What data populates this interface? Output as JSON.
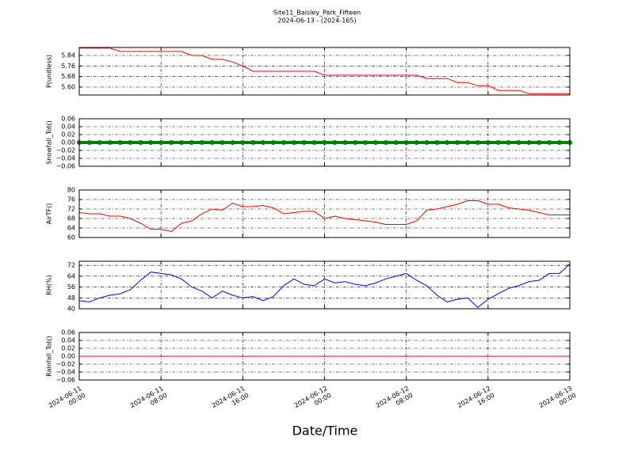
{
  "chart_data": [
    {
      "type": "line",
      "title": "Site11_Baisley_Park_Fifteen",
      "subtitle": "2024-06-13 - (2024-165)",
      "ylabel": "P(unitless)",
      "x": [
        "2024-06-11 00:00",
        "2024-06-11 01:00",
        "2024-06-11 02:00",
        "2024-06-11 03:00",
        "2024-06-11 04:00",
        "2024-06-11 05:00",
        "2024-06-11 06:00",
        "2024-06-11 07:00",
        "2024-06-11 08:00",
        "2024-06-11 09:00",
        "2024-06-11 10:00",
        "2024-06-11 11:00",
        "2024-06-11 12:00",
        "2024-06-11 13:00",
        "2024-06-11 14:00",
        "2024-06-11 15:00",
        "2024-06-11 16:00",
        "2024-06-11 17:00",
        "2024-06-11 18:00",
        "2024-06-11 19:00",
        "2024-06-11 20:00",
        "2024-06-11 21:00",
        "2024-06-11 22:00",
        "2024-06-11 23:00",
        "2024-06-12 00:00",
        "2024-06-12 01:00",
        "2024-06-12 02:00",
        "2024-06-12 03:00",
        "2024-06-12 04:00",
        "2024-06-12 05:00",
        "2024-06-12 06:00",
        "2024-06-12 07:00",
        "2024-06-12 08:00",
        "2024-06-12 09:00",
        "2024-06-12 10:00",
        "2024-06-12 11:00",
        "2024-06-12 12:00",
        "2024-06-12 13:00",
        "2024-06-12 14:00",
        "2024-06-12 15:00",
        "2024-06-12 16:00",
        "2024-06-12 17:00",
        "2024-06-12 18:00",
        "2024-06-12 19:00",
        "2024-06-12 20:00",
        "2024-06-12 21:00",
        "2024-06-12 22:00",
        "2024-06-12 23:00",
        "2024-06-13 00:00"
      ],
      "series": [
        {
          "color": "#ff0000",
          "values": [
            5.895,
            5.895,
            5.895,
            5.895,
            5.87,
            5.87,
            5.87,
            5.87,
            5.87,
            5.87,
            5.87,
            5.84,
            5.84,
            5.81,
            5.81,
            5.79,
            5.76,
            5.72,
            5.72,
            5.72,
            5.72,
            5.72,
            5.72,
            5.72,
            5.69,
            5.69,
            5.69,
            5.69,
            5.69,
            5.69,
            5.69,
            5.69,
            5.69,
            5.69,
            5.665,
            5.665,
            5.665,
            5.635,
            5.635,
            5.61,
            5.61,
            5.575,
            5.575,
            5.575,
            5.55,
            5.55,
            5.55,
            5.55,
            5.55
          ]
        }
      ],
      "xlim": [
        "2024-06-11 00:00",
        "2024-06-13 00:00"
      ],
      "xticks": [
        "2024-06-11 00:00",
        "2024-06-11 08:00",
        "2024-06-11 16:00",
        "2024-06-12 00:00",
        "2024-06-12 08:00",
        "2024-06-12 16:00",
        "2024-06-13 00:00"
      ],
      "ylim": [
        5.54,
        5.9
      ],
      "yticks": [
        {
          "value": 5.6,
          "label": "5.60"
        },
        5.68,
        5.76,
        5.84
      ],
      "grid": true
    },
    {
      "type": "line",
      "ylabel": "Snowfall_Tot()",
      "marker": true,
      "x": [
        "2024-06-11 00:00",
        "2024-06-11 01:00",
        "2024-06-11 02:00",
        "2024-06-11 03:00",
        "2024-06-11 04:00",
        "2024-06-11 05:00",
        "2024-06-11 06:00",
        "2024-06-11 07:00",
        "2024-06-11 08:00",
        "2024-06-11 09:00",
        "2024-06-11 10:00",
        "2024-06-11 11:00",
        "2024-06-11 12:00",
        "2024-06-11 13:00",
        "2024-06-11 14:00",
        "2024-06-11 15:00",
        "2024-06-11 16:00",
        "2024-06-11 17:00",
        "2024-06-11 18:00",
        "2024-06-11 19:00",
        "2024-06-11 20:00",
        "2024-06-11 21:00",
        "2024-06-11 22:00",
        "2024-06-11 23:00",
        "2024-06-12 00:00",
        "2024-06-12 01:00",
        "2024-06-12 02:00",
        "2024-06-12 03:00",
        "2024-06-12 04:00",
        "2024-06-12 05:00",
        "2024-06-12 06:00",
        "2024-06-12 07:00",
        "2024-06-12 08:00",
        "2024-06-12 09:00",
        "2024-06-12 10:00",
        "2024-06-12 11:00",
        "2024-06-12 12:00",
        "2024-06-12 13:00",
        "2024-06-12 14:00",
        "2024-06-12 15:00",
        "2024-06-12 16:00",
        "2024-06-12 17:00",
        "2024-06-12 18:00",
        "2024-06-12 19:00",
        "2024-06-12 20:00",
        "2024-06-12 21:00",
        "2024-06-12 22:00",
        "2024-06-12 23:00",
        "2024-06-13 00:00"
      ],
      "series": [
        {
          "color": "#008000",
          "values": [
            0,
            0,
            0,
            0,
            0,
            0,
            0,
            0,
            0,
            0,
            0,
            0,
            0,
            0,
            0,
            0,
            0,
            0,
            0,
            0,
            0,
            0,
            0,
            0,
            0,
            0,
            0,
            0,
            0,
            0,
            0,
            0,
            0,
            0,
            0,
            0,
            0,
            0,
            0,
            0,
            0,
            0,
            0,
            0,
            0,
            0,
            0,
            0,
            0
          ]
        }
      ],
      "xlim": [
        "2024-06-11 00:00",
        "2024-06-13 00:00"
      ],
      "xticks": [
        "2024-06-11 00:00",
        "2024-06-11 08:00",
        "2024-06-11 16:00",
        "2024-06-12 00:00",
        "2024-06-12 08:00",
        "2024-06-12 16:00",
        "2024-06-13 00:00"
      ],
      "ylim": [
        -0.06,
        0.06
      ],
      "yticks": [
        {
          "value": -0.06,
          "label": "−0.06"
        },
        {
          "value": -0.04,
          "label": "−0.04"
        },
        {
          "value": -0.02,
          "label": "−0.02"
        },
        {
          "value": 0,
          "label": "0.00"
        },
        0.02,
        0.04,
        0.06
      ],
      "grid": true
    },
    {
      "type": "line",
      "ylabel": "AirTF()",
      "x": [
        "2024-06-11 00:00",
        "2024-06-11 01:00",
        "2024-06-11 02:00",
        "2024-06-11 03:00",
        "2024-06-11 04:00",
        "2024-06-11 05:00",
        "2024-06-11 06:00",
        "2024-06-11 07:00",
        "2024-06-11 08:00",
        "2024-06-11 09:00",
        "2024-06-11 10:00",
        "2024-06-11 11:00",
        "2024-06-11 12:00",
        "2024-06-11 13:00",
        "2024-06-11 14:00",
        "2024-06-11 15:00",
        "2024-06-11 16:00",
        "2024-06-11 17:00",
        "2024-06-11 18:00",
        "2024-06-11 19:00",
        "2024-06-11 20:00",
        "2024-06-11 21:00",
        "2024-06-11 22:00",
        "2024-06-11 23:00",
        "2024-06-12 00:00",
        "2024-06-12 01:00",
        "2024-06-12 02:00",
        "2024-06-12 03:00",
        "2024-06-12 04:00",
        "2024-06-12 05:00",
        "2024-06-12 06:00",
        "2024-06-12 07:00",
        "2024-06-12 08:00",
        "2024-06-12 09:00",
        "2024-06-12 10:00",
        "2024-06-12 11:00",
        "2024-06-12 12:00",
        "2024-06-12 13:00",
        "2024-06-12 14:00",
        "2024-06-12 15:00",
        "2024-06-12 16:00",
        "2024-06-12 17:00",
        "2024-06-12 18:00",
        "2024-06-12 19:00",
        "2024-06-12 20:00",
        "2024-06-12 21:00",
        "2024-06-12 22:00",
        "2024-06-12 23:00",
        "2024-06-13 00:00"
      ],
      "series": [
        {
          "color": "#ff0000",
          "values": [
            70.5,
            70,
            70,
            69,
            69,
            68,
            66,
            63.5,
            63.5,
            62.5,
            66,
            67,
            70,
            72,
            71.5,
            74.5,
            73,
            73,
            73.5,
            72.5,
            70,
            70.5,
            71,
            71,
            68,
            69,
            68,
            67.5,
            67,
            66.5,
            65.5,
            65.5,
            65.5,
            67,
            71.5,
            72,
            73,
            74,
            75.5,
            75.5,
            74,
            74,
            72.5,
            72,
            71.5,
            70.5,
            69.5,
            69.5,
            69.5
          ]
        }
      ],
      "xlim": [
        "2024-06-11 00:00",
        "2024-06-13 00:00"
      ],
      "xticks": [
        "2024-06-11 00:00",
        "2024-06-11 08:00",
        "2024-06-11 16:00",
        "2024-06-12 00:00",
        "2024-06-12 08:00",
        "2024-06-12 16:00",
        "2024-06-13 00:00"
      ],
      "ylim": [
        60,
        80
      ],
      "yticks": [
        60,
        64,
        68,
        72,
        76,
        80
      ],
      "grid": true
    },
    {
      "type": "line",
      "ylabel": "RH(%)",
      "x": [
        "2024-06-11 00:00",
        "2024-06-11 01:00",
        "2024-06-11 02:00",
        "2024-06-11 03:00",
        "2024-06-11 04:00",
        "2024-06-11 05:00",
        "2024-06-11 06:00",
        "2024-06-11 07:00",
        "2024-06-11 08:00",
        "2024-06-11 09:00",
        "2024-06-11 10:00",
        "2024-06-11 11:00",
        "2024-06-11 12:00",
        "2024-06-11 13:00",
        "2024-06-11 14:00",
        "2024-06-11 15:00",
        "2024-06-11 16:00",
        "2024-06-11 17:00",
        "2024-06-11 18:00",
        "2024-06-11 19:00",
        "2024-06-11 20:00",
        "2024-06-11 21:00",
        "2024-06-11 22:00",
        "2024-06-11 23:00",
        "2024-06-12 00:00",
        "2024-06-12 01:00",
        "2024-06-12 02:00",
        "2024-06-12 03:00",
        "2024-06-12 04:00",
        "2024-06-12 05:00",
        "2024-06-12 06:00",
        "2024-06-12 07:00",
        "2024-06-12 08:00",
        "2024-06-12 09:00",
        "2024-06-12 10:00",
        "2024-06-12 11:00",
        "2024-06-12 12:00",
        "2024-06-12 13:00",
        "2024-06-12 14:00",
        "2024-06-12 15:00",
        "2024-06-12 16:00",
        "2024-06-12 17:00",
        "2024-06-12 18:00",
        "2024-06-12 19:00",
        "2024-06-12 20:00",
        "2024-06-12 21:00",
        "2024-06-12 22:00",
        "2024-06-12 23:00",
        "2024-06-13 00:00"
      ],
      "series": [
        {
          "color": "#0000ff",
          "values": [
            46,
            45,
            48,
            50,
            51,
            54,
            61,
            67,
            66,
            65,
            62,
            56,
            53,
            48,
            53,
            50,
            48,
            49,
            46,
            49,
            57,
            62,
            58,
            57,
            62,
            59,
            60,
            58,
            57,
            59,
            62,
            64,
            66,
            61,
            57,
            50,
            45,
            47,
            48,
            41,
            47,
            51,
            55,
            57,
            60,
            61,
            66,
            66,
            73
          ]
        }
      ],
      "xlim": [
        "2024-06-11 00:00",
        "2024-06-13 00:00"
      ],
      "xticks": [
        "2024-06-11 00:00",
        "2024-06-11 08:00",
        "2024-06-11 16:00",
        "2024-06-12 00:00",
        "2024-06-12 08:00",
        "2024-06-12 16:00",
        "2024-06-13 00:00"
      ],
      "ylim": [
        40,
        75
      ],
      "yticks": [
        40,
        48,
        56,
        64,
        72
      ],
      "grid": true
    },
    {
      "type": "line",
      "ylabel": "Rainfall_Tot()",
      "xlabel": "Date/Time",
      "x": [
        "2024-06-11 00:00",
        "2024-06-11 01:00",
        "2024-06-11 02:00",
        "2024-06-11 03:00",
        "2024-06-11 04:00",
        "2024-06-11 05:00",
        "2024-06-11 06:00",
        "2024-06-11 07:00",
        "2024-06-11 08:00",
        "2024-06-11 09:00",
        "2024-06-11 10:00",
        "2024-06-11 11:00",
        "2024-06-11 12:00",
        "2024-06-11 13:00",
        "2024-06-11 14:00",
        "2024-06-11 15:00",
        "2024-06-11 16:00",
        "2024-06-11 17:00",
        "2024-06-11 18:00",
        "2024-06-11 19:00",
        "2024-06-11 20:00",
        "2024-06-11 21:00",
        "2024-06-11 22:00",
        "2024-06-11 23:00",
        "2024-06-12 00:00",
        "2024-06-12 01:00",
        "2024-06-12 02:00",
        "2024-06-12 03:00",
        "2024-06-12 04:00",
        "2024-06-12 05:00",
        "2024-06-12 06:00",
        "2024-06-12 07:00",
        "2024-06-12 08:00",
        "2024-06-12 09:00",
        "2024-06-12 10:00",
        "2024-06-12 11:00",
        "2024-06-12 12:00",
        "2024-06-12 13:00",
        "2024-06-12 14:00",
        "2024-06-12 15:00",
        "2024-06-12 16:00",
        "2024-06-12 17:00",
        "2024-06-12 18:00",
        "2024-06-12 19:00",
        "2024-06-12 20:00",
        "2024-06-12 21:00",
        "2024-06-12 22:00",
        "2024-06-12 23:00",
        "2024-06-13 00:00"
      ],
      "series": [
        {
          "color": "#ff0000",
          "values": [
            0,
            0,
            0,
            0,
            0,
            0,
            0,
            0,
            0,
            0,
            0,
            0,
            0,
            0,
            0,
            0,
            0,
            0,
            0,
            0,
            0,
            0,
            0,
            0,
            0,
            0,
            0,
            0,
            0,
            0,
            0,
            0,
            0,
            0,
            0,
            0,
            0,
            0,
            0,
            0,
            0,
            0,
            0,
            0,
            0,
            0,
            0,
            0,
            0
          ]
        }
      ],
      "xlim": [
        "2024-06-11 00:00",
        "2024-06-13 00:00"
      ],
      "xticks": [
        "2024-06-11 00:00",
        "2024-06-11 08:00",
        "2024-06-11 16:00",
        "2024-06-12 00:00",
        "2024-06-12 08:00",
        "2024-06-12 16:00",
        "2024-06-13 00:00"
      ],
      "ylim": [
        -0.06,
        0.06
      ],
      "yticks": [
        {
          "value": -0.06,
          "label": "−0.06"
        },
        {
          "value": -0.04,
          "label": "−0.04"
        },
        {
          "value": -0.02,
          "label": "−0.02"
        },
        {
          "value": 0,
          "label": "0.00"
        },
        0.02,
        0.04,
        0.06
      ],
      "grid": true
    }
  ]
}
